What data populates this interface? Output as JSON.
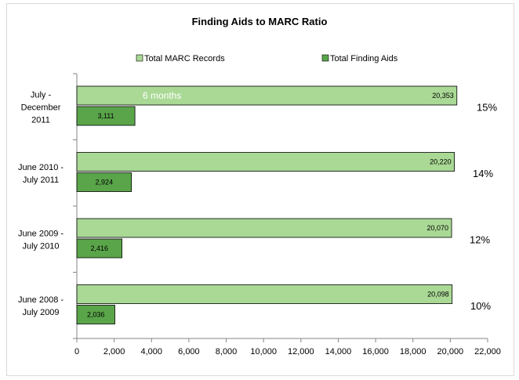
{
  "chart_data": {
    "type": "bar",
    "orientation": "horizontal",
    "title": "Finding Aids  to  MARC  Ratio",
    "categories": [
      [
        "July -",
        "December",
        "2011"
      ],
      [
        "June 2010 -",
        "July 2011"
      ],
      [
        "June 2009 -",
        "July 2010"
      ],
      [
        "June 2008 -",
        "July 2009"
      ]
    ],
    "series": [
      {
        "name": "Total MARC Records",
        "values": [
          20353,
          20220,
          20070,
          20098
        ],
        "labels": [
          "20,353",
          "20,220",
          "20,070",
          "20,098"
        ],
        "color": "#a9d995"
      },
      {
        "name": "Total Finding Aids",
        "values": [
          3111,
          2924,
          2416,
          2036
        ],
        "labels": [
          "3,111",
          "2,924",
          "2,416",
          "2,036"
        ],
        "color": "#5aa54a"
      }
    ],
    "ratios": [
      "15%",
      "14%",
      "12%",
      "10%"
    ],
    "annotation": "6 months",
    "xlim": [
      0,
      22000
    ],
    "xticks": [
      0,
      2000,
      4000,
      6000,
      8000,
      10000,
      12000,
      14000,
      16000,
      18000,
      20000,
      22000
    ],
    "xtick_labels": [
      "0",
      "2,000",
      "4,000",
      "6,000",
      "8,000",
      "10,000",
      "12,000",
      "14,000",
      "16,000",
      "18,000",
      "20,000",
      "22,000"
    ],
    "legend_position": "top",
    "grid": false
  }
}
